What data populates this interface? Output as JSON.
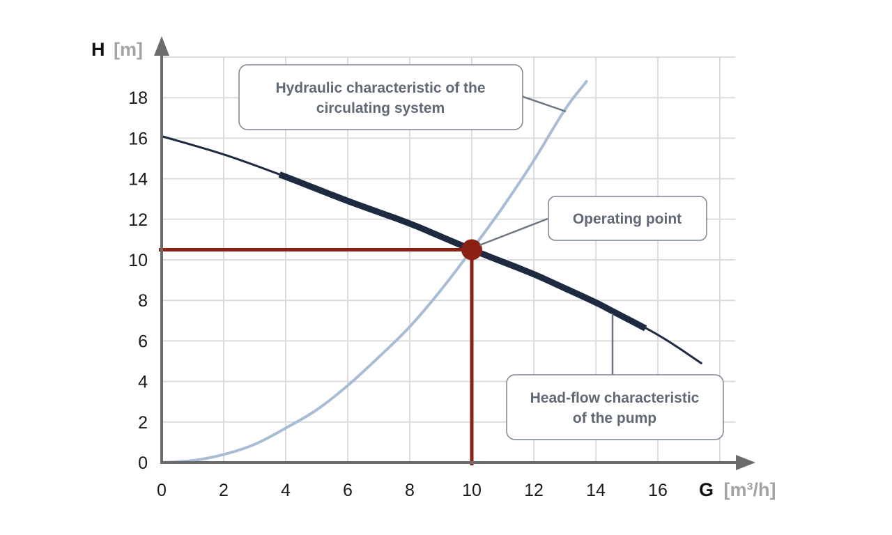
{
  "chart_data": {
    "type": "line",
    "x_axis": {
      "name": "G",
      "unit": "[m³/h]",
      "ticks": [
        0,
        2,
        4,
        6,
        8,
        10,
        12,
        14,
        16
      ],
      "range": [
        0,
        18.5
      ]
    },
    "y_axis": {
      "name": "H",
      "unit": "[m]",
      "ticks": [
        0,
        2,
        4,
        6,
        8,
        10,
        12,
        14,
        16,
        18
      ],
      "range": [
        0,
        20
      ]
    },
    "grid": true,
    "series": [
      {
        "key": "system",
        "color": "#a9bcd6",
        "x": [
          0,
          1,
          2,
          3,
          4,
          5,
          6,
          7,
          8,
          9,
          10,
          11,
          12,
          13,
          13.7
        ],
        "y": [
          0,
          0.1,
          0.4,
          0.9,
          1.7,
          2.6,
          3.8,
          5.2,
          6.7,
          8.5,
          10.5,
          12.6,
          14.9,
          17.4,
          18.8
        ]
      },
      {
        "key": "pump",
        "color": "#1d2a3f",
        "x": [
          0,
          2,
          4,
          6,
          8,
          10,
          12,
          14,
          16,
          17.4
        ],
        "y": [
          16.1,
          15.2,
          14.1,
          12.9,
          11.8,
          10.5,
          9.3,
          7.9,
          6.3,
          4.9
        ],
        "bold_range": [
          3.8,
          15.6
        ]
      }
    ],
    "operating_point": {
      "x": 10,
      "y": 10.5,
      "color": "#8b2015"
    },
    "annotations": [
      {
        "key": "system",
        "lines": [
          "Hydraulic characteristic of the",
          "circulating system"
        ]
      },
      {
        "key": "operating",
        "lines": [
          "Operating point"
        ]
      },
      {
        "key": "pump",
        "lines": [
          "Head-flow characteristic",
          "of the pump"
        ]
      }
    ]
  }
}
